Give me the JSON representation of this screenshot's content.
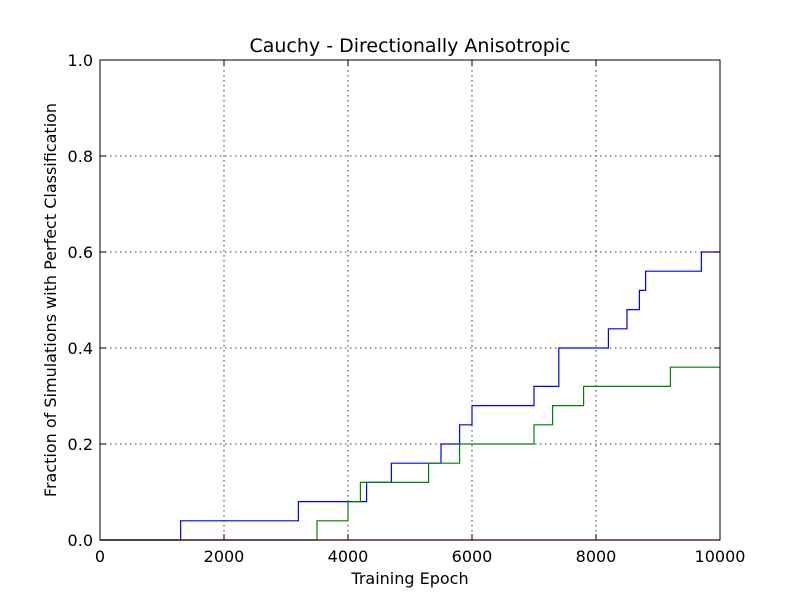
{
  "chart_data": {
    "type": "line",
    "step": "post",
    "title": "Cauchy - Directionally Anisotropic",
    "xlabel": "Training Epoch",
    "ylabel": "Fraction of Simulations with Perfect Classification",
    "xlim": [
      0,
      10000
    ],
    "ylim": [
      0.0,
      1.0
    ],
    "xticks": [
      0,
      2000,
      4000,
      6000,
      8000,
      10000
    ],
    "xtick_labels": [
      "0",
      "2000",
      "4000",
      "6000",
      "8000",
      "10000"
    ],
    "yticks": [
      0.0,
      0.2,
      0.4,
      0.6,
      0.8,
      1.0
    ],
    "ytick_labels": [
      "0.0",
      "0.2",
      "0.4",
      "0.6",
      "0.8",
      "1.0"
    ],
    "grid": true,
    "series": [
      {
        "color": "#0000ff",
        "x": [
          0,
          1300,
          3200,
          4000,
          4300,
          4700,
          5500,
          5800,
          6000,
          7000,
          7400,
          8200,
          8500,
          8700,
          8800,
          9700,
          10000
        ],
        "y": [
          0.0,
          0.04,
          0.08,
          0.08,
          0.12,
          0.16,
          0.2,
          0.24,
          0.28,
          0.32,
          0.4,
          0.44,
          0.48,
          0.52,
          0.56,
          0.6,
          0.6
        ]
      },
      {
        "color": "#008000",
        "x": [
          0,
          3500,
          4000,
          4200,
          5300,
          5800,
          7000,
          7300,
          7800,
          9200,
          10000
        ],
        "y": [
          0.0,
          0.04,
          0.08,
          0.12,
          0.16,
          0.2,
          0.24,
          0.28,
          0.32,
          0.36,
          0.36
        ]
      },
      {
        "color": "#ff0000",
        "x": [
          0,
          10000
        ],
        "y": [
          0.0,
          0.0
        ]
      }
    ]
  }
}
